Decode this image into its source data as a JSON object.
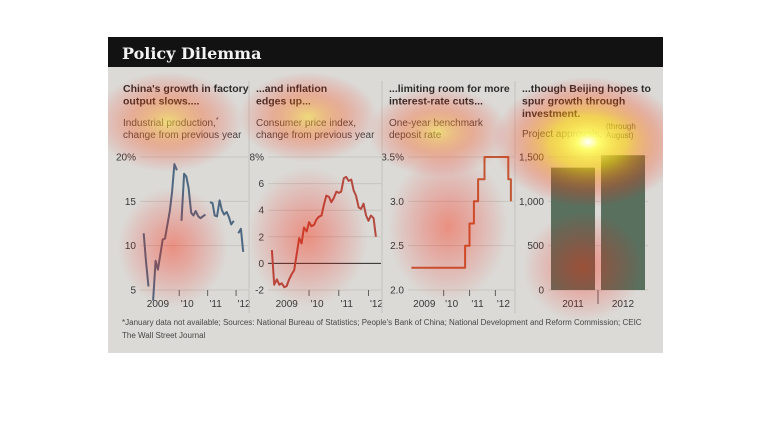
{
  "figure_title": "Policy Dilemma",
  "colors": {
    "header_bg": "#121212",
    "panel_bg": "#f3f1ec",
    "industrial_line": "#3f5f7f",
    "cpi_line": "#c0392b",
    "rate_line": "#d24a1c",
    "bars": "#4d6a52"
  },
  "chart_data": [
    {
      "type": "line",
      "heading": "China's growth in factory output slows....",
      "subtitle_1": "Industrial production,",
      "subtitle_mark": "*",
      "subtitle_2": "change from previous year",
      "ylim": [
        5,
        20
      ],
      "yticks": [
        "20%",
        "15",
        "10",
        "5"
      ],
      "xticks": [
        "2009",
        "'10",
        "'11",
        "'12"
      ],
      "x": [
        2008.75,
        2008.83,
        2008.92,
        2009.0,
        2009.08,
        2009.17,
        2009.25,
        2009.33,
        2009.42,
        2009.5,
        2009.58,
        2009.67,
        2009.75,
        2009.83,
        2009.92,
        2010.0,
        2010.08,
        2010.17,
        2010.25,
        2010.33,
        2010.42,
        2010.5,
        2010.58,
        2010.67,
        2010.75,
        2010.83,
        2010.92,
        2011.0,
        2011.08,
        2011.17,
        2011.25,
        2011.33,
        2011.42,
        2011.5,
        2011.58,
        2011.67,
        2011.75,
        2011.83,
        2011.92,
        2012.0,
        2012.08,
        2012.17,
        2012.25
      ],
      "values": [
        11.4,
        8.2,
        5.4,
        null,
        3.8,
        8.3,
        7.3,
        8.9,
        10.7,
        10.8,
        12.3,
        13.9,
        16.1,
        19.2,
        18.5,
        null,
        12.8,
        18.1,
        17.8,
        16.5,
        13.7,
        13.4,
        13.9,
        13.3,
        13.1,
        13.3,
        13.5,
        null,
        14.9,
        14.8,
        13.4,
        13.3,
        15.1,
        14.0,
        13.5,
        13.8,
        13.2,
        12.4,
        12.8,
        null,
        11.4,
        11.9,
        9.3
      ]
    },
    {
      "type": "line",
      "heading": "...and inflation edges up...",
      "subtitle_1": "Consumer price index,",
      "subtitle_2": "change from previous year",
      "ylim": [
        -2,
        8
      ],
      "yticks": [
        "8%",
        "6",
        "4",
        "2",
        "0",
        "-2"
      ],
      "xticks": [
        "2009",
        "'10",
        "'11",
        "'12"
      ],
      "x": [
        2008.75,
        2008.83,
        2008.92,
        2009.0,
        2009.08,
        2009.17,
        2009.25,
        2009.33,
        2009.42,
        2009.5,
        2009.58,
        2009.67,
        2009.75,
        2009.83,
        2009.92,
        2010.0,
        2010.08,
        2010.17,
        2010.25,
        2010.33,
        2010.42,
        2010.5,
        2010.58,
        2010.67,
        2010.75,
        2010.83,
        2010.92,
        2011.0,
        2011.08,
        2011.17,
        2011.25,
        2011.33,
        2011.42,
        2011.5,
        2011.58,
        2011.67,
        2011.75,
        2011.83,
        2011.92,
        2012.0,
        2012.08,
        2012.17,
        2012.25
      ],
      "values": [
        1.0,
        -1.6,
        -1.2,
        -1.6,
        -1.5,
        -1.8,
        -1.7,
        -1.2,
        -0.8,
        -0.5,
        0.6,
        1.9,
        1.5,
        2.7,
        2.4,
        3.1,
        2.8,
        2.9,
        3.3,
        3.5,
        3.6,
        4.4,
        5.1,
        5.0,
        4.6,
        4.9,
        5.4,
        5.3,
        5.4,
        6.4,
        6.5,
        6.2,
        6.3,
        5.5,
        5.1,
        4.2,
        4.1,
        4.5,
        3.6,
        3.2,
        3.6,
        3.4,
        2.0
      ]
    },
    {
      "type": "line",
      "heading": "...limiting room for more interest-rate cuts...",
      "subtitle_1": "One-year benchmark",
      "subtitle_2": "deposit rate",
      "ylim": [
        2.0,
        3.5
      ],
      "yticks": [
        "3.5%",
        "3.0",
        "2.5",
        "2.0"
      ],
      "xticks": [
        "2009",
        "'10",
        "'11",
        "'12"
      ],
      "step": true,
      "x": [
        2008.75,
        2010.0,
        2010.83,
        2011.0,
        2011.17,
        2011.33,
        2011.58,
        2012.42,
        2012.5,
        2012.6
      ],
      "values": [
        2.25,
        2.25,
        2.5,
        2.75,
        3.0,
        3.25,
        3.5,
        3.5,
        3.25,
        3.0
      ]
    },
    {
      "type": "bar",
      "heading": "...though Beijing hopes to spur growth through investment.",
      "subtitle_1": "Project approvals,",
      "annotation": "(through August)",
      "ylim": [
        0,
        1500
      ],
      "yticks": [
        "1,500",
        "1,000",
        "500",
        "0"
      ],
      "categories": [
        "2011",
        "2012"
      ],
      "values": [
        1380,
        1520
      ]
    }
  ],
  "footnote": "*January data not available; Sources: National Bureau of Statistics; People's Bank of China; National Development and Reform Commission; CEIC",
  "credit": "The Wall Street Journal"
}
